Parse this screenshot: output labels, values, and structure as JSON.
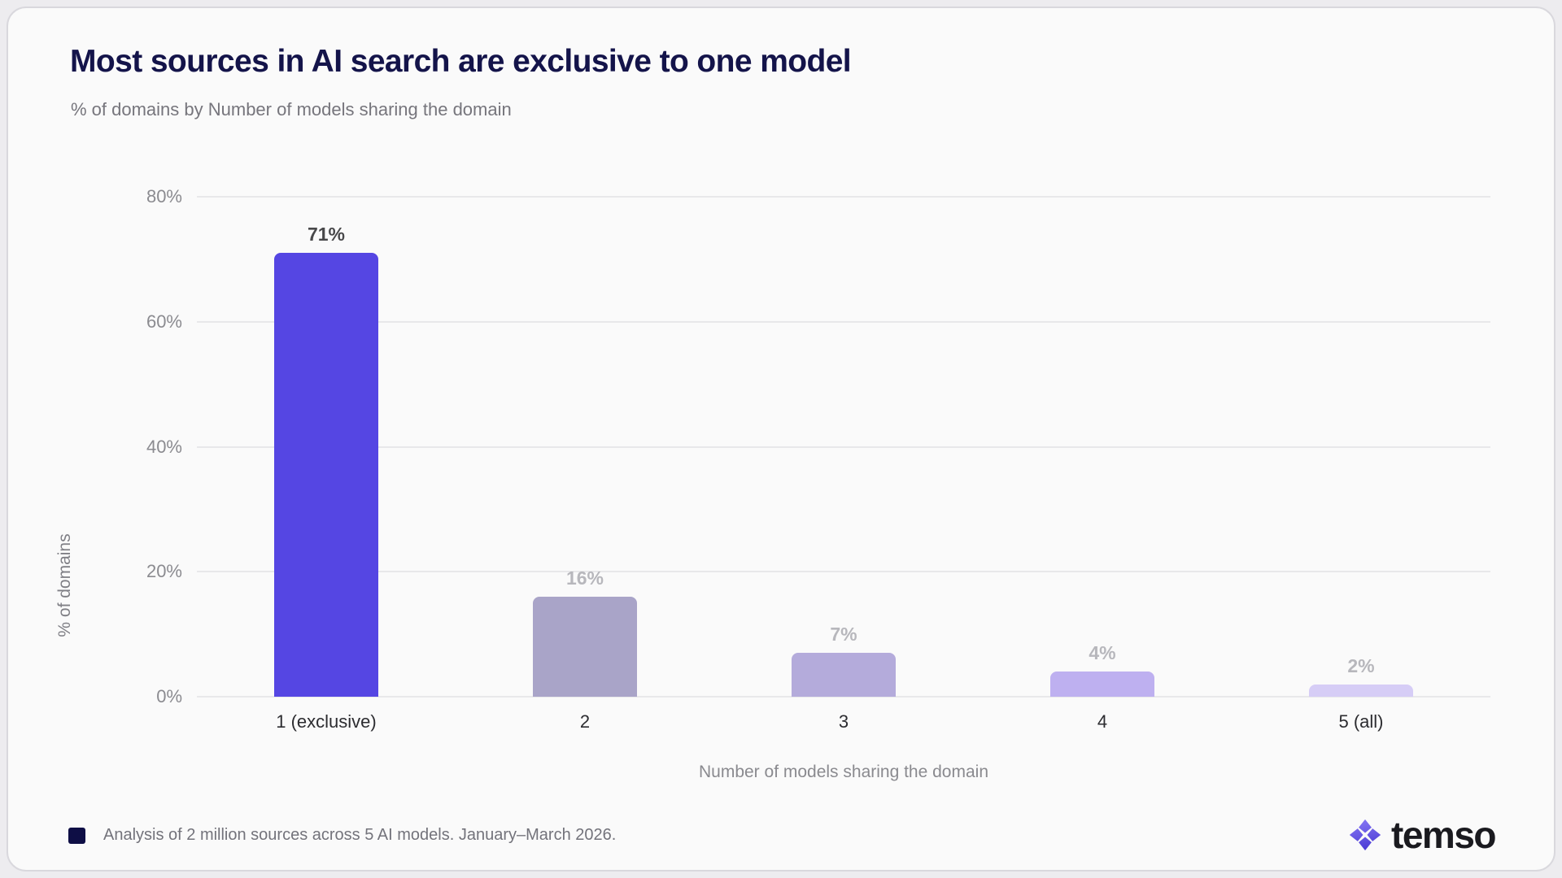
{
  "header": {
    "title": "Most sources in AI search are exclusive to one model",
    "subtitle": "% of domains by Number of models sharing the domain"
  },
  "chart_data": {
    "type": "bar",
    "title": "Most sources in AI search are exclusive to one model",
    "subtitle": "% of domains by Number of models sharing the domain",
    "categories": [
      "1 (exclusive)",
      "2",
      "3",
      "4",
      "5 (all)"
    ],
    "values": [
      71,
      16,
      7,
      4,
      2
    ],
    "value_labels": [
      "71%",
      "16%",
      "7%",
      "4%",
      "2%"
    ],
    "bar_colors": [
      "#5546e3",
      "#a9a4c8",
      "#b4abdb",
      "#beb0f0",
      "#d6cdf6"
    ],
    "value_label_colors": [
      "#48484a",
      "#b7b7bc",
      "#b7b7bc",
      "#b7b7bc",
      "#b7b7bc"
    ],
    "xlabel": "Number of models sharing the domain",
    "ylabel": "% of domains",
    "ylim": [
      0,
      80
    ],
    "ytick_values": [
      0,
      20,
      40,
      60,
      80
    ],
    "ytick_labels": [
      "0%",
      "20%",
      "40%",
      "60%",
      "80%"
    ],
    "grid": true,
    "legend_position": "none"
  },
  "footer": {
    "note": "Analysis of 2 million sources across 5 AI models. January–March 2026.",
    "marker_color": "#0e0e45"
  },
  "brand": {
    "name": "temso",
    "icon": "sparkle-star-icon",
    "icon_gradient": [
      "#8a7cf6",
      "#4e3ed6"
    ]
  }
}
